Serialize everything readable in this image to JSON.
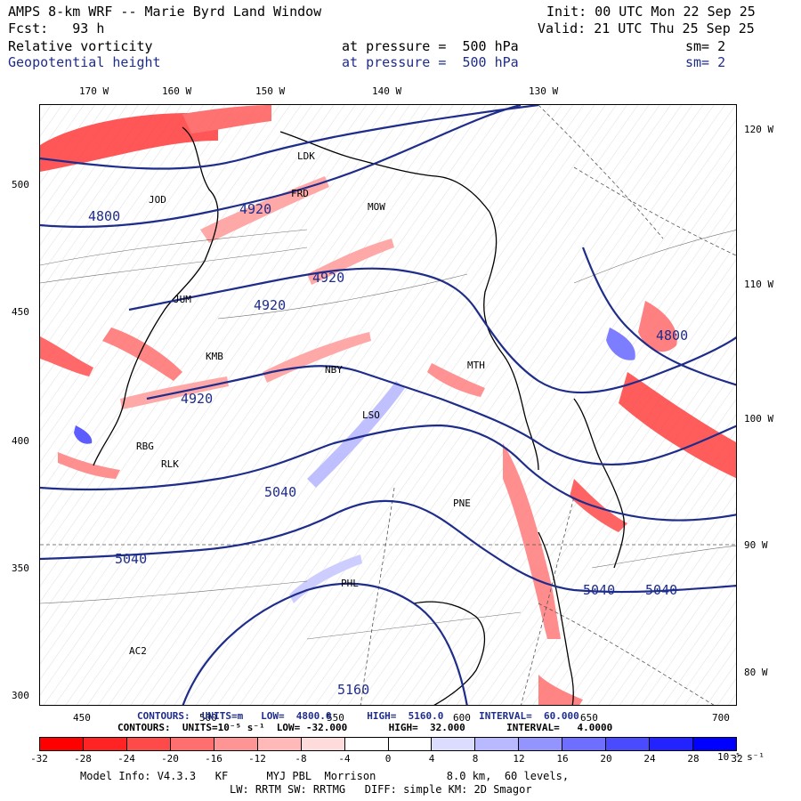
{
  "header": {
    "model_title": "AMPS 8-km WRF -- Marie Byrd Land Window",
    "init": "Init: 00 UTC Mon 22 Sep 25",
    "forecast": "Fcst:   93 h",
    "valid": "Valid: 21 UTC Thu 25 Sep 25",
    "field1": {
      "name": "Relative vorticity",
      "level": "at pressure =  500 hPa",
      "sm": "sm= 2"
    },
    "field2": {
      "name": "Geopotential height",
      "level": "at pressure =  500 hPa",
      "sm": "sm= 2"
    }
  },
  "top_ticks": [
    "170 W",
    "160 W",
    "150 W",
    "140 W",
    "130 W"
  ],
  "right_ticks": [
    "120 W",
    "110 W",
    "100 W",
    "90 W",
    "80 W"
  ],
  "left_ticks": [
    "500",
    "450",
    "400",
    "350",
    "300"
  ],
  "bottom_ticks": [
    "450",
    "500",
    "550",
    "600",
    "650",
    "700"
  ],
  "stations": [
    "LDK",
    "FRD",
    "MOW",
    "JOD",
    "JUM",
    "KMB",
    "NBY",
    "MTH",
    "RBG",
    "RLK",
    "LSO",
    "PNE",
    "PHL",
    "AC2"
  ],
  "height_labels": [
    "4920",
    "4920",
    "4920",
    "4920",
    "5040",
    "5040",
    "5040",
    "5040",
    "5160",
    "4800",
    "4800"
  ],
  "contour_info": {
    "height": "CONTOURS:  UNITS=m   LOW=  4800.0      HIGH=  5160.0      INTERVAL=  60.000",
    "vorticity": "CONTOURS:  UNITS=10⁻⁵ s⁻¹  LOW= -32.000       HIGH=  32.000       INTERVAL=   4.0000"
  },
  "colorbar": {
    "labels": [
      "-32",
      "-28",
      "-24",
      "-20",
      "-16",
      "-12",
      "-8",
      "-4",
      "0",
      "4",
      "8",
      "12",
      "16",
      "20",
      "24",
      "28",
      "32"
    ],
    "unit": "10⁻⁵ s⁻¹",
    "colors": [
      "#ff0000",
      "#ff2323",
      "#ff4a4a",
      "#ff6f6f",
      "#ff9494",
      "#ffb9b9",
      "#ffdcdc",
      "#ffffff",
      "#ffffff",
      "#dcdcff",
      "#b9b9ff",
      "#9494ff",
      "#6f6fff",
      "#4a4aff",
      "#2323ff",
      "#0000ff"
    ]
  },
  "footer": {
    "line1": "Model Info: V4.3.3   KF      MYJ PBL  Morrison           8.0 km,  60 levels,",
    "line2": "LW: RRTM SW: RRTMG   DIFF: simple KM: 2D Smagor"
  }
}
